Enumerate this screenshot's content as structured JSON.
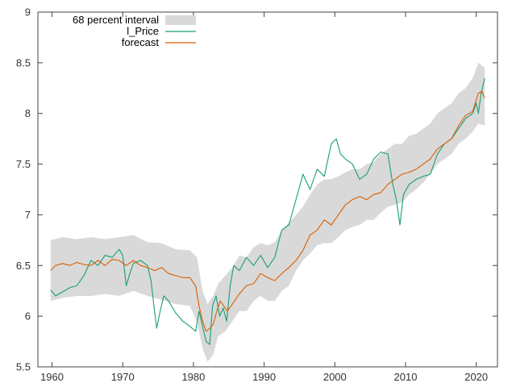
{
  "chart_data": {
    "type": "line",
    "title": "",
    "xlabel": "",
    "ylabel": "",
    "xlim": [
      1958,
      2023
    ],
    "ylim": [
      5.5,
      9
    ],
    "grid": false,
    "legend_position": "top-left",
    "xticks": [
      1960,
      1970,
      1980,
      1990,
      2000,
      2010,
      2020
    ],
    "xtick_labels": [
      "1960",
      "1970",
      "1980",
      "1990",
      "2000",
      "2010",
      "2020"
    ],
    "yticks": [
      5.5,
      6,
      6.5,
      7,
      7.5,
      8,
      8.5,
      9
    ],
    "ytick_labels": [
      "5.5",
      "6",
      "6.5",
      "7",
      "7.5",
      "8",
      "8.5",
      "9"
    ],
    "legend": [
      {
        "label": "68 percent interval",
        "kind": "band",
        "color": "#d9d9d9"
      },
      {
        "label": "l_Price",
        "kind": "line",
        "color": "#1a9e77"
      },
      {
        "label": "forecast",
        "kind": "line",
        "color": "#d95f02"
      }
    ],
    "series": [
      {
        "name": "l_Price",
        "color": "#1a9e77",
        "x": [
          1959.8,
          1960.5,
          1961.5,
          1962.5,
          1963.5,
          1964.5,
          1965.5,
          1966.5,
          1967.5,
          1968.5,
          1969.5,
          1970.0,
          1970.5,
          1971.0,
          1971.5,
          1972.5,
          1973.5,
          1974.0,
          1974.5,
          1974.8,
          1975.3,
          1975.8,
          1976.5,
          1977.5,
          1978.5,
          1979.5,
          1980.3,
          1980.8,
          1981.3,
          1981.8,
          1982.3,
          1982.7,
          1983.2,
          1983.7,
          1984.2,
          1984.7,
          1985.2,
          1985.7,
          1986.5,
          1987.5,
          1988.5,
          1989.5,
          1990.5,
          1991.5,
          1992.5,
          1993.5,
          1994.5,
          1995.5,
          1996.5,
          1997.5,
          1998.5,
          1999.5,
          2000.2,
          2000.8,
          2001.5,
          2002.5,
          2003.5,
          2004.5,
          2005.5,
          2006.5,
          2007.5,
          2008.2,
          2008.7,
          2009.2,
          2009.7,
          2010.5,
          2011.5,
          2012.5,
          2013.5,
          2014.5,
          2015.5,
          2016.5,
          2017.5,
          2018.5,
          2019.5,
          2020.0,
          2020.3,
          2020.7,
          2021.2
        ],
        "values": [
          6.26,
          6.2,
          6.24,
          6.28,
          6.3,
          6.4,
          6.55,
          6.5,
          6.6,
          6.58,
          6.66,
          6.6,
          6.3,
          6.42,
          6.52,
          6.55,
          6.5,
          6.35,
          6.05,
          5.88,
          6.05,
          6.2,
          6.15,
          6.03,
          5.95,
          5.9,
          5.85,
          6.05,
          5.9,
          5.75,
          5.72,
          6.1,
          6.2,
          6.0,
          6.08,
          5.95,
          6.3,
          6.5,
          6.45,
          6.58,
          6.5,
          6.6,
          6.48,
          6.58,
          6.85,
          6.9,
          7.15,
          7.4,
          7.25,
          7.45,
          7.38,
          7.7,
          7.75,
          7.6,
          7.55,
          7.5,
          7.35,
          7.4,
          7.55,
          7.62,
          7.6,
          7.3,
          7.15,
          6.9,
          7.2,
          7.3,
          7.35,
          7.38,
          7.4,
          7.6,
          7.7,
          7.75,
          7.85,
          7.95,
          8.0,
          8.1,
          8.0,
          8.2,
          8.35
        ]
      },
      {
        "name": "forecast",
        "color": "#d95f02",
        "x": [
          1959.8,
          1960.5,
          1961.5,
          1962.5,
          1963.5,
          1964.5,
          1965.5,
          1966.5,
          1967.5,
          1968.5,
          1969.5,
          1970.5,
          1971.5,
          1972.5,
          1973.5,
          1974.5,
          1975.5,
          1976.5,
          1977.5,
          1978.5,
          1979.5,
          1980.3,
          1980.8,
          1981.3,
          1981.8,
          1982.3,
          1982.8,
          1983.3,
          1983.8,
          1984.3,
          1984.8,
          1985.5,
          1986.5,
          1987.5,
          1988.5,
          1989.5,
          1990.5,
          1991.5,
          1992.5,
          1993.5,
          1994.5,
          1995.5,
          1996.5,
          1997.5,
          1998.5,
          1999.5,
          2000.5,
          2001.5,
          2002.5,
          2003.5,
          2004.5,
          2005.5,
          2006.5,
          2007.5,
          2008.5,
          2009.5,
          2010.5,
          2011.5,
          2012.5,
          2013.5,
          2014.5,
          2015.5,
          2016.5,
          2017.5,
          2018.5,
          2019.5,
          2020.3,
          2020.8,
          2021.2
        ],
        "values": [
          6.45,
          6.5,
          6.52,
          6.5,
          6.53,
          6.51,
          6.5,
          6.55,
          6.5,
          6.56,
          6.55,
          6.5,
          6.55,
          6.5,
          6.48,
          6.45,
          6.48,
          6.42,
          6.4,
          6.38,
          6.38,
          6.3,
          6.1,
          5.95,
          5.85,
          5.88,
          5.92,
          6.05,
          6.15,
          6.1,
          6.05,
          6.12,
          6.22,
          6.3,
          6.32,
          6.42,
          6.38,
          6.35,
          6.42,
          6.48,
          6.55,
          6.65,
          6.8,
          6.85,
          6.95,
          6.9,
          7.0,
          7.1,
          7.15,
          7.18,
          7.15,
          7.2,
          7.22,
          7.3,
          7.35,
          7.4,
          7.42,
          7.45,
          7.5,
          7.55,
          7.65,
          7.7,
          7.75,
          7.88,
          7.98,
          8.02,
          8.2,
          8.22,
          8.15
        ]
      }
    ],
    "band": {
      "name": "68 percent interval",
      "color": "#d9d9d9",
      "x": [
        1959.8,
        1961.5,
        1963.5,
        1965.5,
        1967.5,
        1969.5,
        1971.5,
        1973.5,
        1975.5,
        1977.5,
        1979.5,
        1980.5,
        1981.3,
        1982.0,
        1982.8,
        1983.5,
        1984.5,
        1985.5,
        1986.5,
        1987.5,
        1988.5,
        1989.5,
        1990.5,
        1991.5,
        1992.5,
        1993.5,
        1994.5,
        1995.5,
        1996.5,
        1997.5,
        1998.5,
        1999.5,
        2000.5,
        2001.5,
        2002.5,
        2003.5,
        2004.5,
        2005.5,
        2006.5,
        2007.5,
        2008.5,
        2009.5,
        2010.5,
        2011.5,
        2012.5,
        2013.5,
        2014.5,
        2015.5,
        2016.5,
        2017.5,
        2018.5,
        2019.5,
        2020.3,
        2021.2
      ],
      "upper": [
        6.75,
        6.78,
        6.76,
        6.78,
        6.76,
        6.78,
        6.8,
        6.73,
        6.72,
        6.66,
        6.65,
        6.58,
        6.25,
        6.12,
        6.2,
        6.32,
        6.4,
        6.48,
        6.6,
        6.58,
        6.68,
        6.72,
        6.7,
        6.73,
        6.85,
        6.92,
        7.0,
        7.08,
        7.2,
        7.3,
        7.35,
        7.35,
        7.38,
        7.42,
        7.45,
        7.45,
        7.5,
        7.52,
        7.6,
        7.65,
        7.7,
        7.7,
        7.78,
        7.8,
        7.85,
        7.9,
        8.0,
        8.05,
        8.1,
        8.2,
        8.25,
        8.35,
        8.5,
        8.45
      ],
      "lower": [
        6.15,
        6.18,
        6.2,
        6.2,
        6.22,
        6.2,
        6.25,
        6.2,
        6.16,
        6.12,
        6.1,
        5.95,
        5.68,
        5.55,
        5.62,
        5.8,
        5.85,
        5.95,
        6.05,
        6.05,
        6.15,
        6.2,
        6.15,
        6.15,
        6.25,
        6.3,
        6.45,
        6.55,
        6.62,
        6.7,
        6.72,
        6.72,
        6.78,
        6.85,
        6.88,
        6.9,
        6.95,
        6.95,
        7.02,
        7.08,
        7.1,
        7.12,
        7.2,
        7.25,
        7.32,
        7.4,
        7.5,
        7.55,
        7.6,
        7.7,
        7.75,
        7.82,
        7.9,
        7.88
      ]
    }
  }
}
